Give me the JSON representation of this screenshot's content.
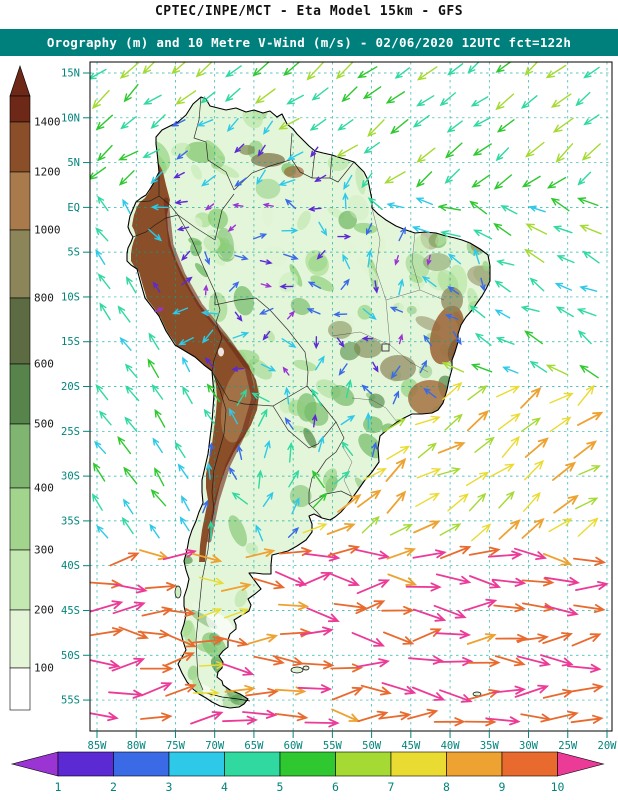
{
  "header": {
    "line1": "CPTEC/INPE/MCT -  Eta Model 15km - GFS",
    "line2": "Orography (m) and 10 Metre V-Wind (m/s) - 02/06/2020 12UTC fct=122h",
    "band_color": "#00807d",
    "title_color": "#111111"
  },
  "map": {
    "lat_labels": [
      "15N",
      "10N",
      "5N",
      "EQ",
      "5S",
      "10S",
      "15S",
      "20S",
      "25S",
      "30S",
      "35S",
      "40S",
      "45S",
      "50S",
      "55S"
    ],
    "lon_labels": [
      "85W",
      "80W",
      "75W",
      "70W",
      "65W",
      "60W",
      "55W",
      "50W",
      "45W",
      "40W",
      "35W",
      "30W",
      "25W",
      "20W"
    ],
    "grid_color": "#00a59a",
    "label_color": "#00857c",
    "coast_color": "#000000",
    "land_base_color": "#e4f6da",
    "ocean_color": "#ffffff"
  },
  "orography_colorbar": {
    "labels": [
      "1400",
      "1200",
      "1000",
      "800",
      "600",
      "500",
      "400",
      "300",
      "200",
      "100"
    ],
    "colors_top_to_bottom": [
      "#6e2817",
      "#8a4e28",
      "#a87a4c",
      "#8c855a",
      "#5c6b42",
      "#56844b",
      "#7fb471",
      "#a2d48e",
      "#c4e8b2",
      "#e3f5d6",
      "#ffffff"
    ],
    "label_color": "#1a1a1a"
  },
  "wind_colorbar": {
    "labels": [
      "1",
      "2",
      "3",
      "4",
      "5",
      "6",
      "7",
      "8",
      "9",
      "10"
    ],
    "colors_left_to_right": [
      "#9a35d4",
      "#5c2ad3",
      "#3a6ae6",
      "#2ec9e8",
      "#2fd9a0",
      "#2fc830",
      "#a4da33",
      "#eadb33",
      "#eda231",
      "#e96a2e",
      "#ec3a97"
    ]
  }
}
